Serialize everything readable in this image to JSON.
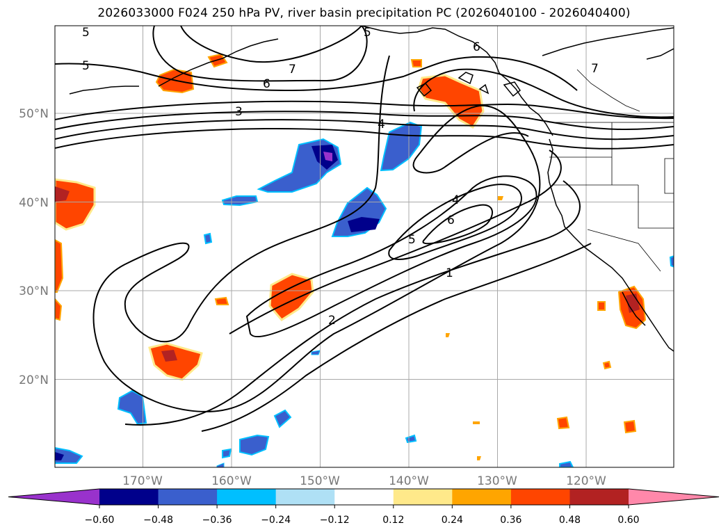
{
  "title": "2026033000 F024 250 hPa PV, river basin precipitation PC (2026040100 - 2026040400)",
  "map": {
    "lon_labels": [
      "170°W",
      "160°W",
      "150°W",
      "140°W",
      "130°W",
      "120°W"
    ],
    "lat_labels": [
      "50°N",
      "40°N",
      "30°N",
      "20°N"
    ],
    "contour_labels": [
      "5",
      "5",
      "5",
      "7",
      "6",
      "6",
      "3",
      "4",
      "4",
      "6",
      "5",
      "1",
      "2",
      "7"
    ],
    "colors": {
      "coast": "#000000",
      "grid": "#a8a8a8"
    }
  },
  "colorbar": {
    "ticks": [
      "−0.60",
      "−0.48",
      "−0.36",
      "−0.24",
      "−0.12",
      "0.12",
      "0.24",
      "0.36",
      "0.48",
      "0.60"
    ],
    "colors": [
      "#9932cc",
      "#00008b",
      "#3a5fcd",
      "#00bfff",
      "#afe0f5",
      "#ffffff",
      "#ffe98a",
      "#ffa500",
      "#ff4500",
      "#b22222",
      "#ff88aa"
    ]
  }
}
